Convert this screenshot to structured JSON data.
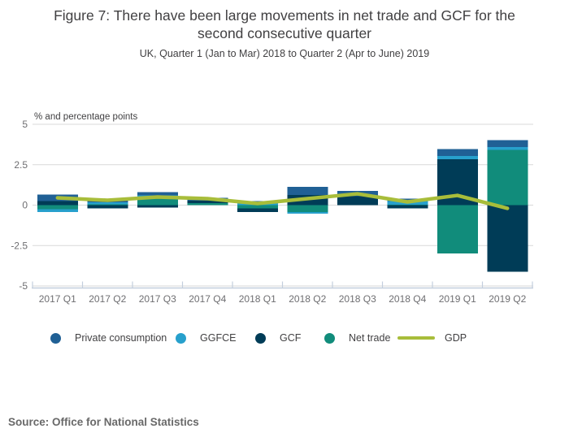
{
  "header": {
    "title": "Figure 7: There have been large movements in net trade and GCF for the second consecutive quarter",
    "subtitle": "UK, Quarter 1 (Jan to Mar) 2018 to Quarter 2 (Apr to June) 2019"
  },
  "chart_data": {
    "type": "bar",
    "stacked": true,
    "title": "Figure 7: There have been large movements in net trade and GCF for the second consecutive quarter",
    "subtitle": "UK, Quarter 1 (Jan to Mar) 2018 to Quarter 2 (Apr to June) 2019",
    "unit_label": "% and percentage points",
    "categories": [
      "2017 Q1",
      "2017 Q2",
      "2017 Q3",
      "2017 Q4",
      "2018 Q1",
      "2018 Q2",
      "2018 Q3",
      "2018 Q4",
      "2019 Q1",
      "2019 Q2"
    ],
    "series": [
      {
        "name": "Private consumption",
        "key": "pc",
        "type": "bar",
        "color": "#206095",
        "values": [
          0.4,
          0.15,
          0.2,
          0.18,
          0.12,
          0.5,
          0.33,
          0.15,
          0.42,
          0.42
        ]
      },
      {
        "name": "GGFCE",
        "key": "ggfce",
        "type": "bar",
        "color": "#27a0cc",
        "values": [
          -0.18,
          0.13,
          0.2,
          0.0,
          0.12,
          -0.12,
          0.0,
          0.22,
          0.21,
          0.17
        ]
      },
      {
        "name": "GCF",
        "key": "gcf",
        "type": "bar",
        "color": "#003c57",
        "values": [
          0.26,
          -0.2,
          -0.15,
          0.16,
          -0.23,
          0.62,
          0.56,
          -0.2,
          2.84,
          -4.11
        ]
      },
      {
        "name": "Net trade",
        "key": "net_trade",
        "type": "bar",
        "color": "#118c7b",
        "values": [
          -0.25,
          0.05,
          0.4,
          0.12,
          -0.2,
          -0.42,
          0.0,
          0.03,
          -2.99,
          3.42
        ]
      },
      {
        "name": "GDP",
        "key": "gdp",
        "type": "line",
        "color": "#a8bd3a",
        "values": [
          0.45,
          0.3,
          0.5,
          0.4,
          0.1,
          0.4,
          0.7,
          0.2,
          0.6,
          -0.2
        ]
      }
    ],
    "stack_order": [
      "net_trade",
      "gcf",
      "ggfce",
      "pc"
    ],
    "y_ticks": [
      5,
      2.5,
      0,
      -2.5,
      -5
    ],
    "ylim": [
      -5,
      5
    ],
    "grid": true,
    "legend_position": "bottom",
    "colors": {
      "gridline": "#d9d9d9",
      "axis_line": "#c3cedd",
      "tick_label": "#6e6e71",
      "text": "#414042"
    }
  },
  "source": {
    "text": "Source: Office for National Statistics"
  }
}
